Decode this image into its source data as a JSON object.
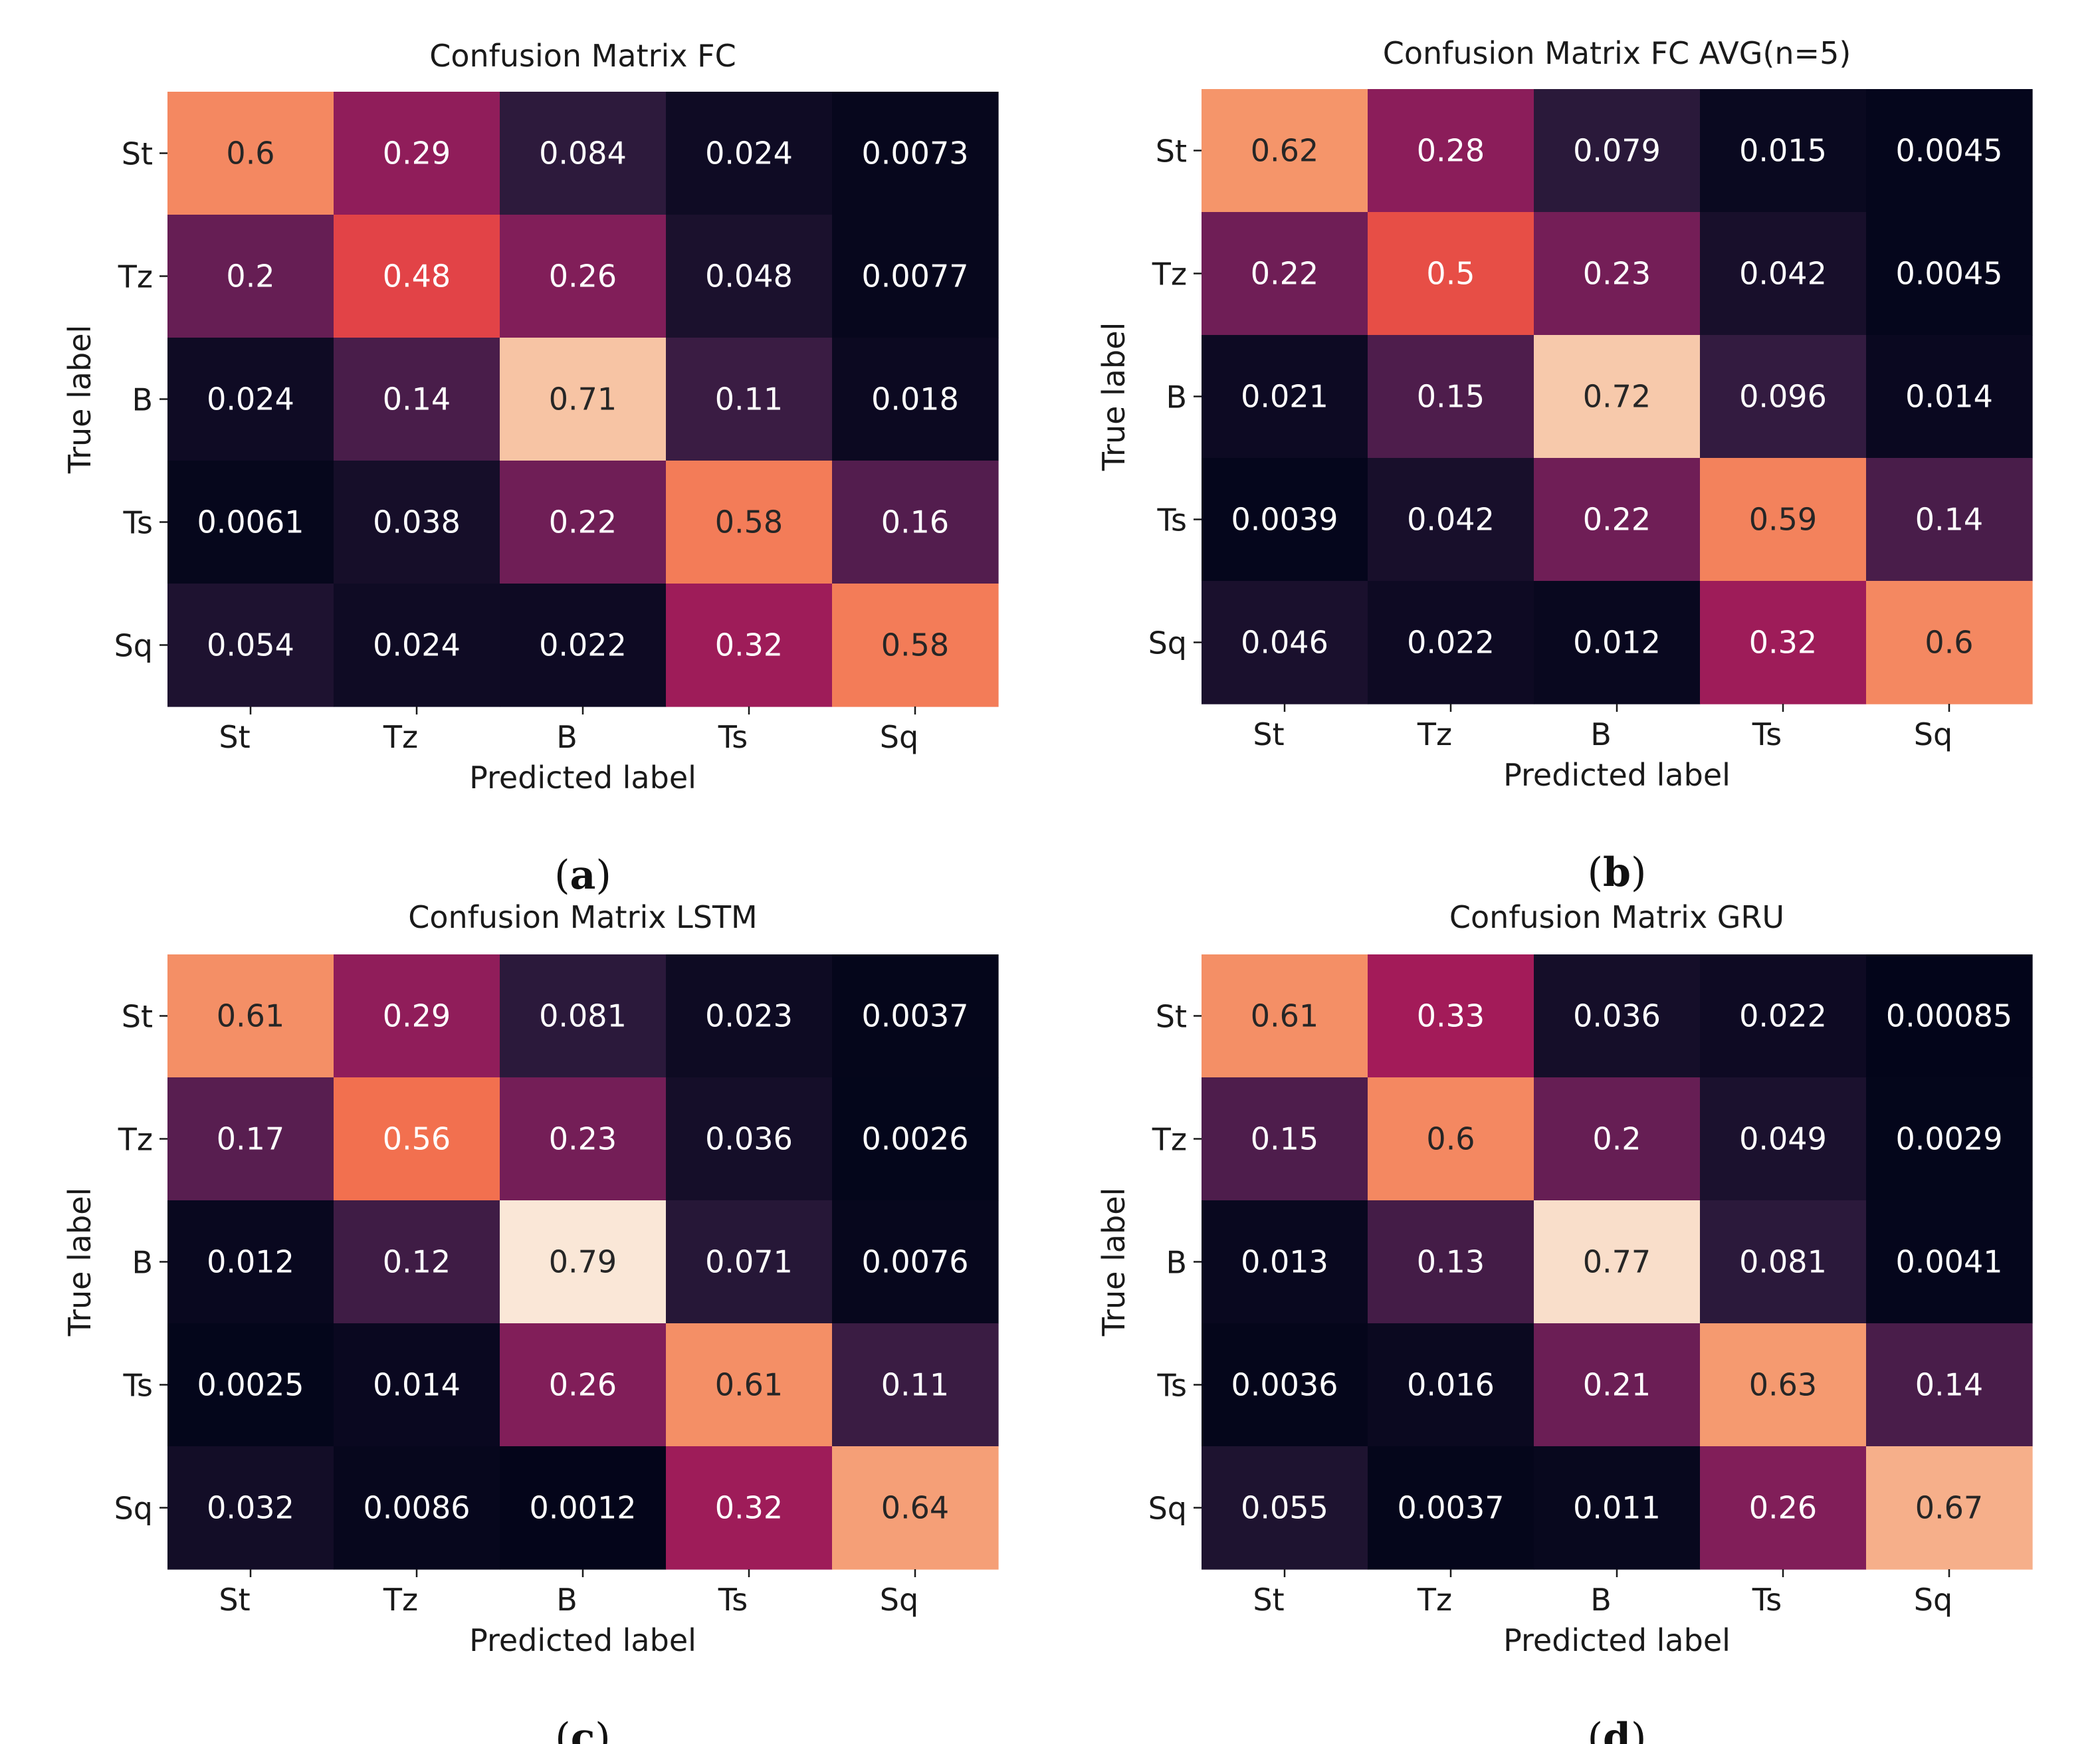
{
  "chart_data": [
    {
      "type": "heatmap",
      "panel": "(a)",
      "panel_letter": "a",
      "title": "Confusion Matrix FC",
      "xlabel": "Predicted label",
      "ylabel": "True label",
      "x_categories": [
        "St",
        "Tz",
        "B",
        "Ts",
        "Sq"
      ],
      "y_categories": [
        "St",
        "Tz",
        "B",
        "Ts",
        "Sq"
      ],
      "values": [
        [
          "0.6",
          "0.29",
          "0.084",
          "0.024",
          "0.0073"
        ],
        [
          "0.2",
          "0.48",
          "0.26",
          "0.048",
          "0.0077"
        ],
        [
          "0.024",
          "0.14",
          "0.71",
          "0.11",
          "0.018"
        ],
        [
          "0.0061",
          "0.038",
          "0.22",
          "0.58",
          "0.16"
        ],
        [
          "0.054",
          "0.024",
          "0.022",
          "0.32",
          "0.58"
        ]
      ]
    },
    {
      "type": "heatmap",
      "panel": "(b)",
      "panel_letter": "b",
      "title": "Confusion Matrix FC AVG(n=5)",
      "xlabel": "Predicted label",
      "ylabel": "True label",
      "x_categories": [
        "St",
        "Tz",
        "B",
        "Ts",
        "Sq"
      ],
      "y_categories": [
        "St",
        "Tz",
        "B",
        "Ts",
        "Sq"
      ],
      "values": [
        [
          "0.62",
          "0.28",
          "0.079",
          "0.015",
          "0.0045"
        ],
        [
          "0.22",
          "0.5",
          "0.23",
          "0.042",
          "0.0045"
        ],
        [
          "0.021",
          "0.15",
          "0.72",
          "0.096",
          "0.014"
        ],
        [
          "0.0039",
          "0.042",
          "0.22",
          "0.59",
          "0.14"
        ],
        [
          "0.046",
          "0.022",
          "0.012",
          "0.32",
          "0.6"
        ]
      ]
    },
    {
      "type": "heatmap",
      "panel": "(c)",
      "panel_letter": "c",
      "title": "Confusion Matrix LSTM",
      "xlabel": "Predicted label",
      "ylabel": "True label",
      "x_categories": [
        "St",
        "Tz",
        "B",
        "Ts",
        "Sq"
      ],
      "y_categories": [
        "St",
        "Tz",
        "B",
        "Ts",
        "Sq"
      ],
      "values": [
        [
          "0.61",
          "0.29",
          "0.081",
          "0.023",
          "0.0037"
        ],
        [
          "0.17",
          "0.56",
          "0.23",
          "0.036",
          "0.0026"
        ],
        [
          "0.012",
          "0.12",
          "0.79",
          "0.071",
          "0.0076"
        ],
        [
          "0.0025",
          "0.014",
          "0.26",
          "0.61",
          "0.11"
        ],
        [
          "0.032",
          "0.0086",
          "0.0012",
          "0.32",
          "0.64"
        ]
      ]
    },
    {
      "type": "heatmap",
      "panel": "(d)",
      "panel_letter": "d",
      "title": "Confusion Matrix GRU",
      "xlabel": "Predicted label",
      "ylabel": "True label",
      "x_categories": [
        "St",
        "Tz",
        "B",
        "Ts",
        "Sq"
      ],
      "y_categories": [
        "St",
        "Tz",
        "B",
        "Ts",
        "Sq"
      ],
      "values": [
        [
          "0.61",
          "0.33",
          "0.036",
          "0.022",
          "0.00085"
        ],
        [
          "0.15",
          "0.6",
          "0.2",
          "0.049",
          "0.0029"
        ],
        [
          "0.013",
          "0.13",
          "0.77",
          "0.081",
          "0.0041"
        ],
        [
          "0.0036",
          "0.016",
          "0.21",
          "0.63",
          "0.14"
        ],
        [
          "0.055",
          "0.0037",
          "0.011",
          "0.26",
          "0.67"
        ]
      ]
    }
  ],
  "colormap": {
    "name": "rocket",
    "stops": [
      "#03051a",
      "#2f1b3e",
      "#5c1e52",
      "#841e5a",
      "#b01a59",
      "#d8304a",
      "#f06043",
      "#f5966b",
      "#f7c5a5",
      "#faebdd"
    ]
  }
}
